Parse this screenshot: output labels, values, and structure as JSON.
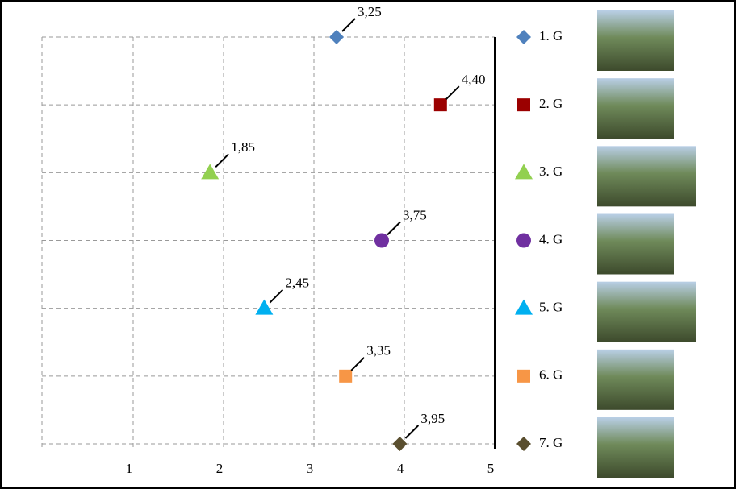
{
  "chart_data": {
    "type": "scatter",
    "xlim": [
      0,
      5
    ],
    "xticks": [
      1,
      2,
      3,
      4,
      5
    ],
    "grid": true,
    "series": [
      {
        "name": "1. G",
        "color": "#4f81bd",
        "marker": "diamond",
        "values": [
          3.25
        ],
        "value_labels": [
          "3,25"
        ]
      },
      {
        "name": "2. G",
        "color": "#9b0000",
        "marker": "square",
        "values": [
          4.4
        ],
        "value_labels": [
          "4,40"
        ]
      },
      {
        "name": "3. G",
        "color": "#92d050",
        "marker": "triangle",
        "values": [
          1.85
        ],
        "value_labels": [
          "1,85"
        ]
      },
      {
        "name": "4. G",
        "color": "#7030a0",
        "marker": "circle",
        "values": [
          3.75
        ],
        "value_labels": [
          "3,75"
        ]
      },
      {
        "name": "5. G",
        "color": "#00b0f0",
        "marker": "triangle",
        "values": [
          2.45
        ],
        "value_labels": [
          "2,45"
        ]
      },
      {
        "name": "6. G",
        "color": "#f79646",
        "marker": "square",
        "values": [
          3.35
        ],
        "value_labels": [
          "3,35"
        ]
      },
      {
        "name": "7. G",
        "color": "#5a4f2f",
        "marker": "diamond",
        "values": [
          3.95
        ],
        "value_labels": [
          "3,95"
        ]
      }
    ]
  }
}
